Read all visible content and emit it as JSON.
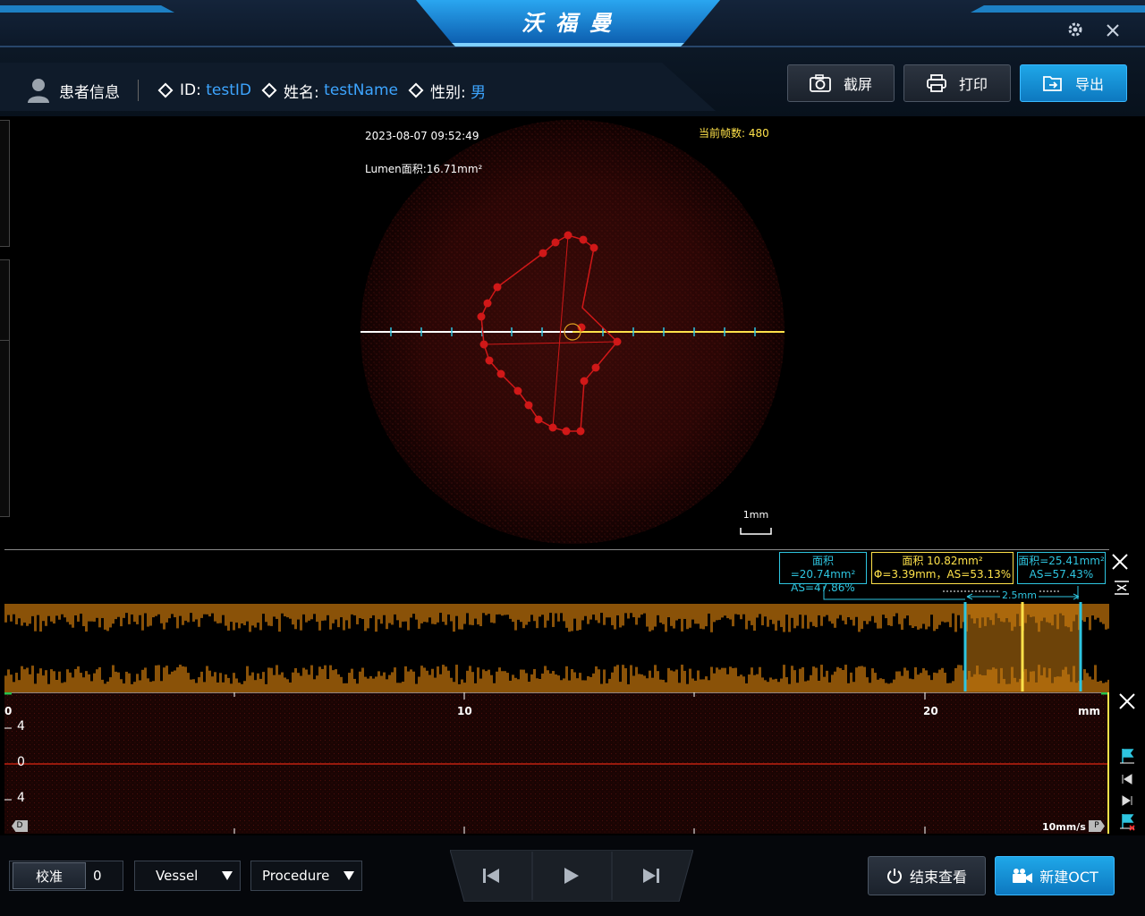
{
  "app": {
    "title": "沃福曼"
  },
  "window": {
    "settings_icon": "gear-icon",
    "close_icon": "close-icon"
  },
  "patient": {
    "section_label": "患者信息",
    "id_label": "ID:",
    "id_value": "testID",
    "name_label": "姓名:",
    "name_value": "testName",
    "sex_label": "性别:",
    "sex_value": "男"
  },
  "toolbar": {
    "screenshot": "截屏",
    "print": "打印",
    "export": "导出"
  },
  "image_view": {
    "timestamp": "2023-08-07 09:52:49",
    "lumen_area": "Lumen面积:16.71mm²",
    "frame_label": "当前帧数:",
    "frame_value": "480",
    "scale_label": "1mm"
  },
  "measurements": {
    "left": {
      "line1": "面积=20.74mm²",
      "line2": "AS=47.86%"
    },
    "center": {
      "line1": "面积 10.82mm²",
      "line2": "Φ=3.39mm，AS=53.13%"
    },
    "right": {
      "line1": "面积=25.41mm²",
      "line2": "AS=57.43%"
    },
    "length": "2.5mm"
  },
  "pullback": {
    "ticks": [
      "0",
      "10",
      "20"
    ],
    "unit": "mm",
    "y_ticks": [
      "4",
      "0",
      "4"
    ],
    "speed": "10mm/s",
    "distal_marker": "D",
    "proximal_marker": "P"
  },
  "footer": {
    "calibrate_label": "校准",
    "calibrate_value": "0",
    "vessel_select": "Vessel",
    "procedure_select": "Procedure",
    "end_view": "结束查看",
    "new_oct": "新建OCT"
  },
  "colors": {
    "accent": "#1394d8",
    "value_blue": "#3da5ff",
    "cyan": "#2ec5e0",
    "yellow": "#ffe24a",
    "contour_red": "#d01818",
    "lmode_orange": "#8a5208"
  }
}
